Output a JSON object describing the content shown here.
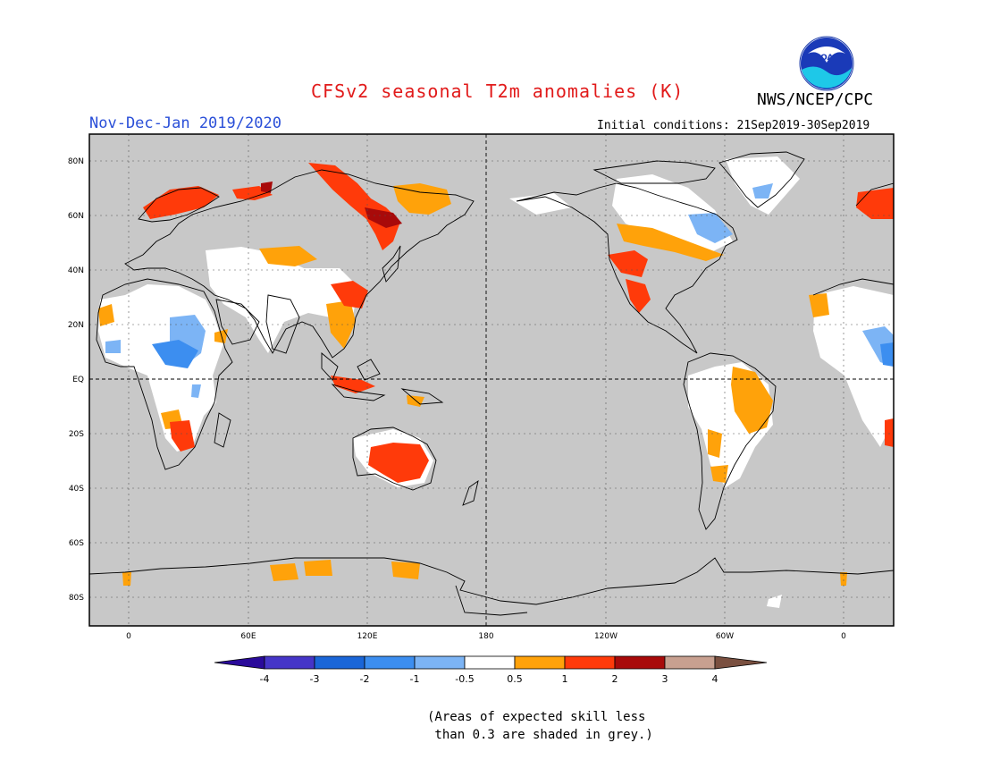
{
  "title": "CFSv2 seasonal T2m anomalies (K)",
  "agency": "NWS/NCEP/CPC",
  "logo_text": "NOAA",
  "period": "Nov-Dec-Jan 2019/2020",
  "initial_conditions": "Initial conditions: 21Sep2019-30Sep2019",
  "footnote": "(Areas of expected skill less\n than 0.3 are shaded in grey.)",
  "map": {
    "background_color": "#c8c8c8",
    "lat_labels": [
      "80N",
      "60N",
      "40N",
      "20N",
      "EQ",
      "20S",
      "40S",
      "60S",
      "80S"
    ],
    "lon_labels": [
      "0",
      "60E",
      "120E",
      "180",
      "120W",
      "60W",
      "0"
    ]
  },
  "colorbar": {
    "colors": [
      "#2a0a9a",
      "#4535c8",
      "#1a66d8",
      "#3c8ef0",
      "#7cb4f5",
      "#ffffff",
      "#ffa20a",
      "#ff3a0a",
      "#a80a0a",
      "#c8a090",
      "#7a5040"
    ],
    "tick_labels": [
      "-4",
      "-3",
      "-2",
      "-1",
      "-0.5",
      "0.5",
      "1",
      "2",
      "3",
      "4"
    ]
  },
  "chart_data": {
    "type": "heatmap",
    "variable": "T2m anomaly",
    "units": "K",
    "levels": [
      -4,
      -3,
      -2,
      -1,
      -0.5,
      0.5,
      1,
      2,
      3,
      4
    ],
    "regions": [
      {
        "name": "Scandinavia / NW Russia",
        "anomaly_range": [
          1,
          2
        ]
      },
      {
        "name": "N Siberia",
        "anomaly_range": [
          1,
          3
        ]
      },
      {
        "name": "E Siberia / Yakutia",
        "anomaly_range": [
          2,
          3
        ]
      },
      {
        "name": "Alaska / W Canada",
        "anomaly_range": [
          0.5,
          1
        ]
      },
      {
        "name": "Hudson Bay",
        "anomaly_range": [
          -1,
          -0.5
        ]
      },
      {
        "name": "Greenland",
        "anomaly_range": [
          -1,
          -0.5
        ]
      },
      {
        "name": "W United States",
        "anomaly_range": [
          1,
          2
        ]
      },
      {
        "name": "Central America",
        "anomaly_range": [
          0.5,
          1
        ]
      },
      {
        "name": "NE Brazil",
        "anomaly_range": [
          0.5,
          1
        ]
      },
      {
        "name": "W/Central Africa",
        "anomaly_range": [
          -1,
          -0.5
        ]
      },
      {
        "name": "Southern Africa",
        "anomaly_range": [
          1,
          2
        ]
      },
      {
        "name": "Australia",
        "anomaly_range": [
          1,
          2
        ]
      },
      {
        "name": "China",
        "anomaly_range": [
          0.5,
          2
        ]
      },
      {
        "name": "Indonesia",
        "anomaly_range": [
          1,
          2
        ]
      },
      {
        "name": "Antarctica coast",
        "anomaly_range": [
          0.5,
          1
        ]
      }
    ]
  }
}
